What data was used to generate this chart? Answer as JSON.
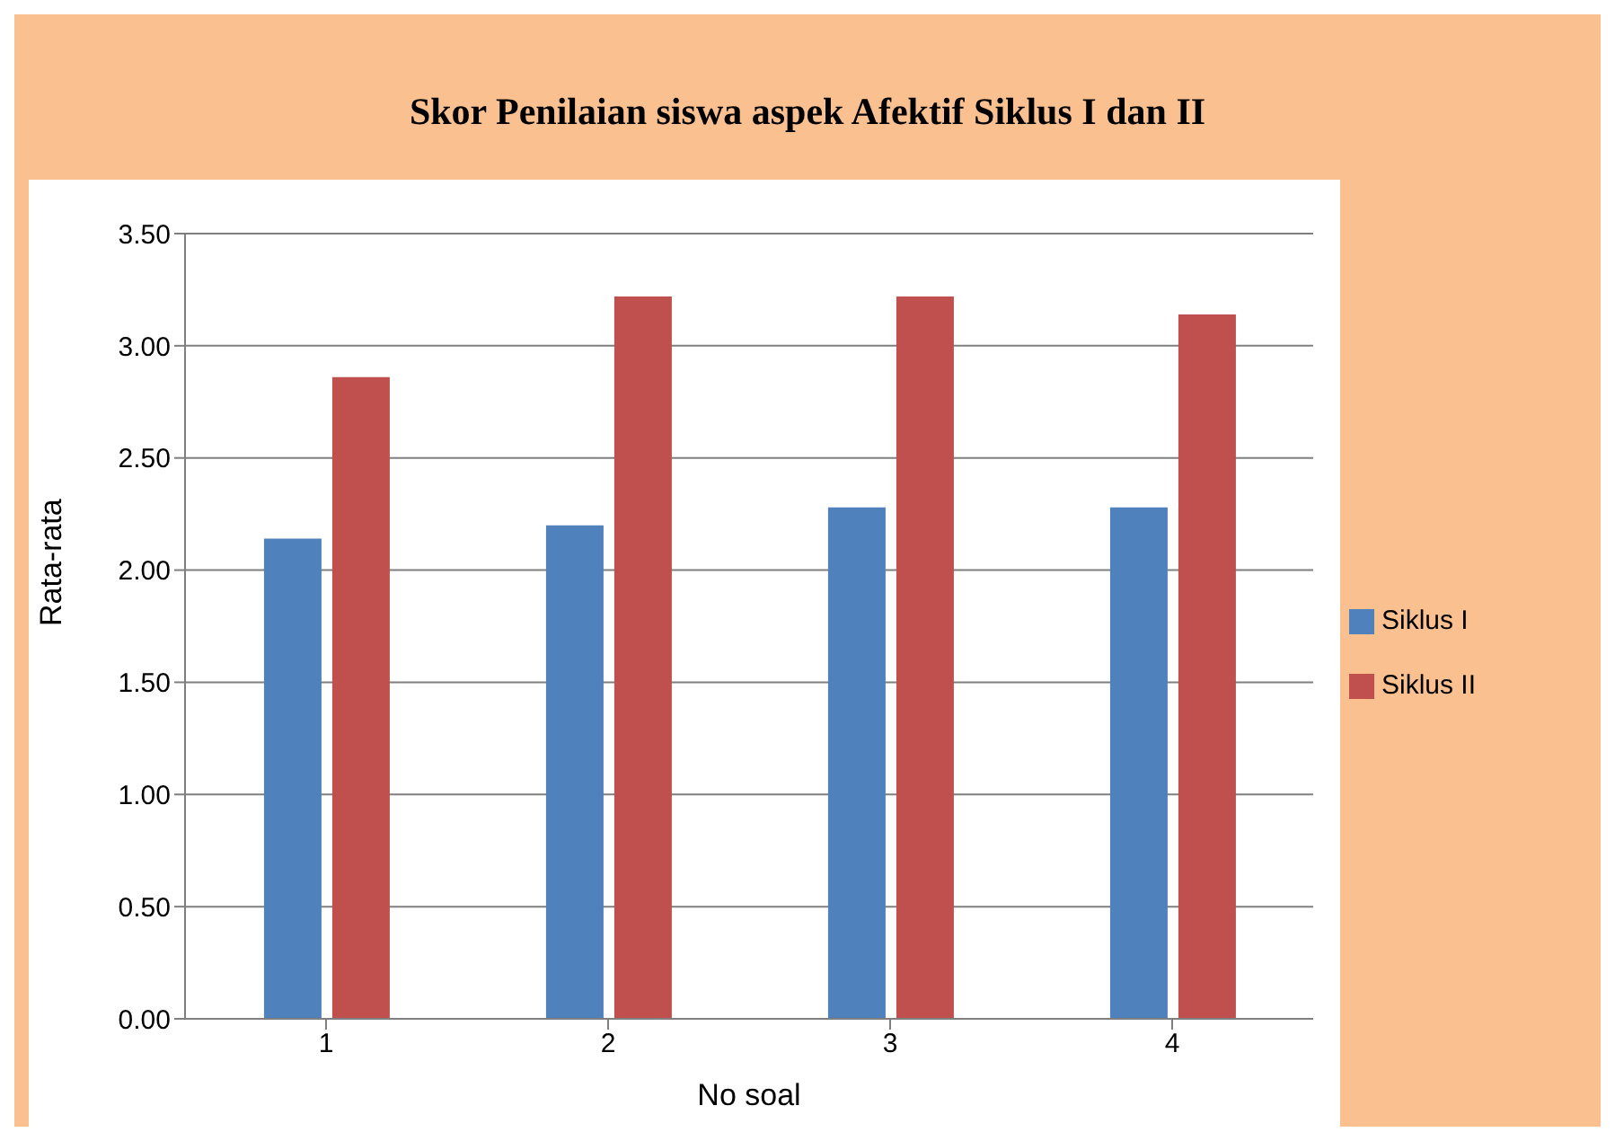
{
  "chart_data": {
    "type": "bar",
    "title": "Skor Penilaian siswa aspek Afektif Siklus I dan II",
    "xlabel": "No soal",
    "ylabel": "Rata-rata",
    "categories": [
      "1",
      "2",
      "3",
      "4"
    ],
    "series": [
      {
        "name": "Siklus I",
        "color": "#4f81bd",
        "values": [
          2.14,
          2.2,
          2.28,
          2.28
        ]
      },
      {
        "name": "Siklus II",
        "color": "#c0504d",
        "values": [
          2.86,
          3.22,
          3.22,
          3.14
        ]
      }
    ],
    "ylim": [
      0,
      3.5
    ],
    "yticks": [
      {
        "value": 0,
        "label": "0.00"
      },
      {
        "value": 0.5,
        "label": "0.50"
      },
      {
        "value": 1,
        "label": "1.00"
      },
      {
        "value": 1.5,
        "label": "1.50"
      },
      {
        "value": 2,
        "label": "2.00"
      },
      {
        "value": 2.5,
        "label": "2.50"
      },
      {
        "value": 3,
        "label": "3.00"
      },
      {
        "value": 3.5,
        "label": "3.50"
      }
    ],
    "grid": "y",
    "legend": "right"
  }
}
